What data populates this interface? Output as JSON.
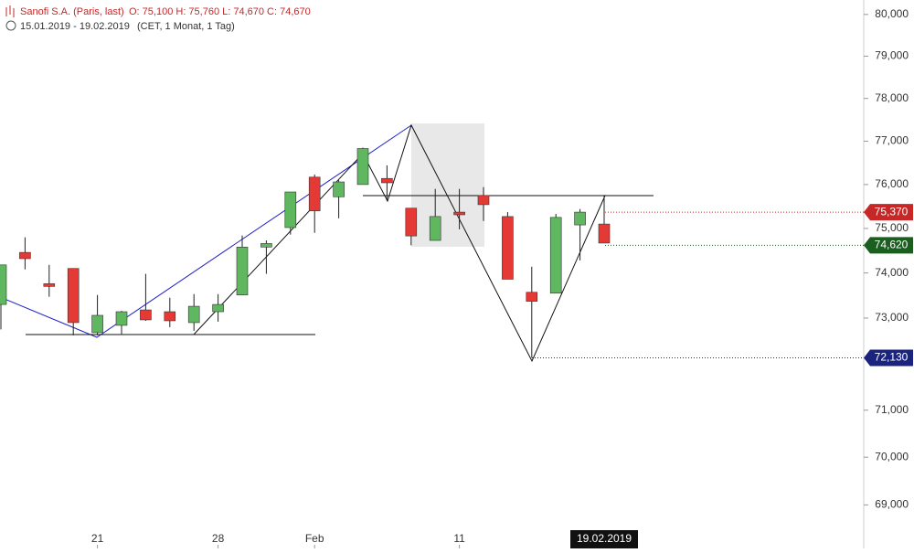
{
  "chart_data": {
    "type": "candlestick",
    "title": "Sanofi S.A. (Paris, last)",
    "quote": "O: 75,100  H: 75,760  L: 74,670  C: 74,670",
    "range": "15.01.2019 - 19.02.2019",
    "settings": "(CET, 1 Monat, 1 Tag)",
    "categories": [
      null,
      null,
      null,
      null,
      "21",
      null,
      null,
      null,
      null,
      "28",
      null,
      null,
      null,
      "Feb",
      null,
      null,
      null,
      null,
      null,
      "11",
      null,
      null,
      null,
      null,
      null,
      "19.02.2019"
    ],
    "open": [
      73300,
      74460,
      73760,
      74100,
      72680,
      72840,
      73180,
      73140,
      72900,
      73140,
      73510,
      74580,
      75020,
      76170,
      75720,
      76000,
      76140,
      75460,
      74730,
      75370,
      75750,
      75270,
      73570,
      73550,
      75080,
      75100
    ],
    "high": [
      74180,
      74800,
      74180,
      74100,
      73510,
      73160,
      73980,
      73450,
      73530,
      73530,
      74840,
      74730,
      75830,
      76230,
      76100,
      76850,
      76440,
      75460,
      75900,
      75900,
      75940,
      75370,
      74140,
      75330,
      75440,
      75760
    ],
    "low": [
      72750,
      74080,
      73470,
      72620,
      72620,
      72650,
      72940,
      72800,
      72720,
      72920,
      73510,
      73980,
      74860,
      74900,
      75230,
      76000,
      75620,
      74620,
      74730,
      74980,
      75170,
      73860,
      72130,
      73550,
      74280,
      74670
    ],
    "close": [
      74180,
      74320,
      73700,
      72900,
      73060,
      73140,
      72960,
      72940,
      73260,
      73300,
      74580,
      74660,
      75830,
      75400,
      76060,
      76830,
      76040,
      74830,
      75270,
      75310,
      75540,
      73860,
      73370,
      75250,
      75370,
      74670
    ],
    "up_color": "#5fb760",
    "down_color": "#e53935",
    "log_y": true,
    "ylim": [
      68100,
      80350
    ],
    "yticks": [
      {
        "value": 69000,
        "label": "69,000"
      },
      {
        "value": 70000,
        "label": "70,000"
      },
      {
        "value": 71000,
        "label": "71,000"
      },
      {
        "value": 73000,
        "label": "73,000"
      },
      {
        "value": 74000,
        "label": "74,000"
      },
      {
        "value": 75000,
        "label": "75,000"
      },
      {
        "value": 76000,
        "label": "76,000"
      },
      {
        "value": 77000,
        "label": "77,000"
      },
      {
        "value": 78000,
        "label": "78,000"
      },
      {
        "value": 79000,
        "label": "79,000"
      },
      {
        "value": 80000,
        "label": "80,000"
      }
    ],
    "price_labels": [
      {
        "value": 75370,
        "label": "75,370",
        "color": "#c62828"
      },
      {
        "value": 74620,
        "label": "74,620",
        "color": "#1b5e20"
      },
      {
        "value": 72130,
        "label": "72,130",
        "color": "#1a237e"
      }
    ]
  }
}
